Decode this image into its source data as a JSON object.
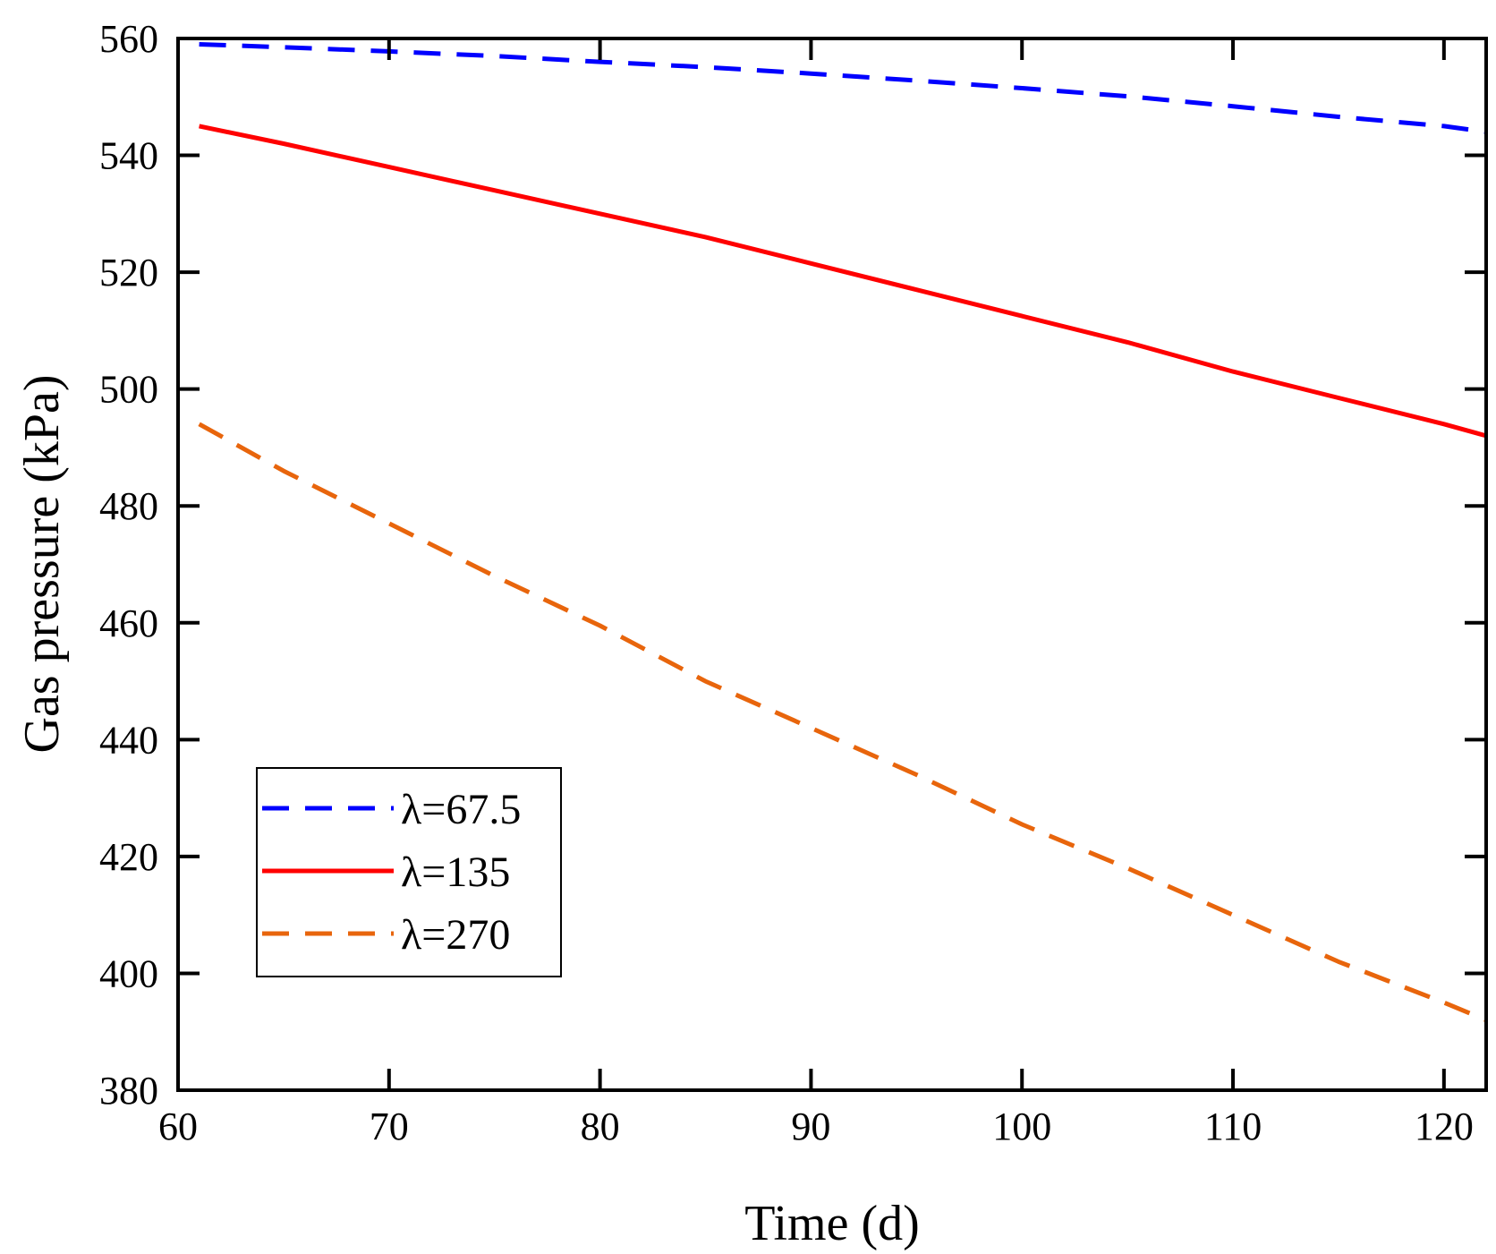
{
  "chart_data": {
    "type": "line",
    "xlabel": "Time (d)",
    "ylabel": "Gas pressure (kPa)",
    "xlim": [
      60,
      122
    ],
    "ylim": [
      380,
      560
    ],
    "xticks": [
      60,
      70,
      80,
      90,
      100,
      110,
      120
    ],
    "yticks": [
      380,
      400,
      420,
      440,
      460,
      480,
      500,
      520,
      540,
      560
    ],
    "legend_position": "bottom-left",
    "series": [
      {
        "name": "λ=67.5",
        "color": "#0000ff",
        "style": "dashed",
        "x": [
          61,
          65,
          70,
          75,
          80,
          85,
          90,
          95,
          100,
          105,
          110,
          115,
          120,
          122
        ],
        "y": [
          559,
          558.5,
          557.8,
          557,
          556,
          555.1,
          554,
          552.8,
          551.5,
          550.1,
          548.4,
          546.6,
          545,
          544
        ]
      },
      {
        "name": "λ=135",
        "color": "#ff0000",
        "style": "solid",
        "x": [
          61,
          65,
          70,
          75,
          80,
          85,
          90,
          95,
          100,
          105,
          110,
          115,
          120,
          122
        ],
        "y": [
          545,
          542,
          538,
          534,
          530,
          526,
          521.5,
          517,
          512.5,
          508,
          503,
          498.5,
          494,
          492
        ]
      },
      {
        "name": "λ=270",
        "color": "#e8650c",
        "style": "dashed",
        "x": [
          61,
          65,
          70,
          75,
          80,
          85,
          90,
          95,
          100,
          105,
          110,
          115,
          120,
          122
        ],
        "y": [
          494,
          486,
          477,
          468,
          459.5,
          450,
          442,
          434,
          425.5,
          418,
          410,
          402,
          395,
          392
        ]
      }
    ]
  }
}
